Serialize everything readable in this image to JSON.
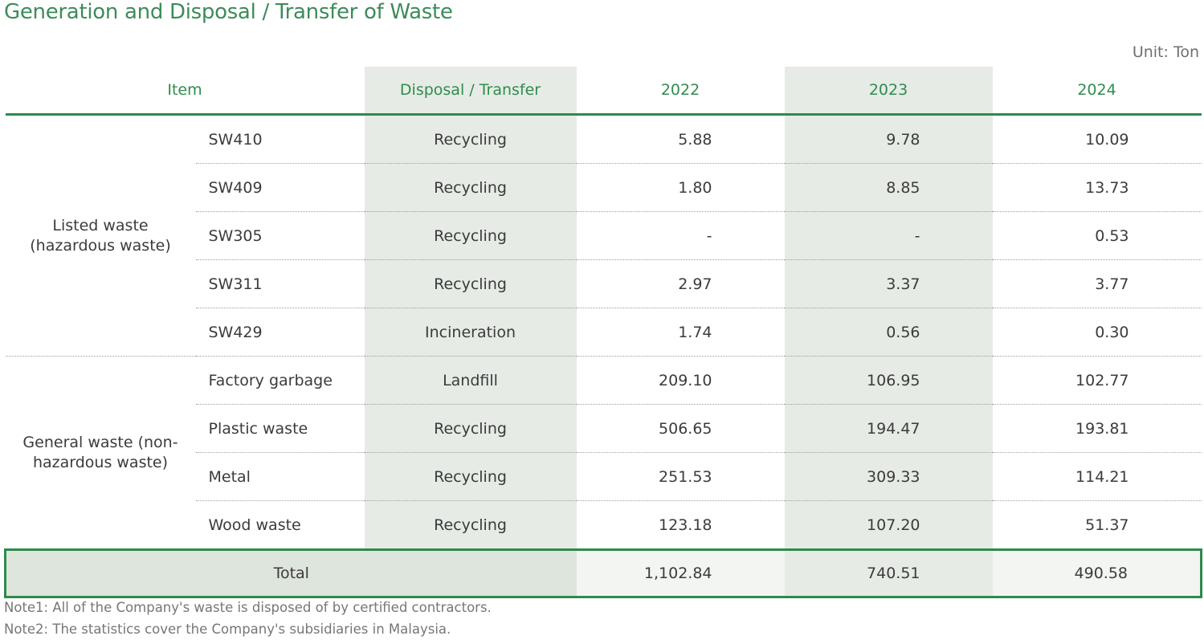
{
  "title": "Generation and Disposal / Transfer of Waste",
  "unit": "Unit: Ton",
  "headers": {
    "item": "Item",
    "disposal": "Disposal / Transfer",
    "y2022": "2022",
    "y2023": "2023",
    "y2024": "2024"
  },
  "groups": [
    {
      "name": "Listed waste (hazardous waste)",
      "rows": [
        {
          "item": "SW410",
          "disposal": "Recycling",
          "y2022": "5.88",
          "y2023": "9.78",
          "y2024": "10.09"
        },
        {
          "item": "SW409",
          "disposal": "Recycling",
          "y2022": "1.80",
          "y2023": "8.85",
          "y2024": "13.73"
        },
        {
          "item": "SW305",
          "disposal": "Recycling",
          "y2022": "-",
          "y2023": "-",
          "y2024": "0.53"
        },
        {
          "item": "SW311",
          "disposal": "Recycling",
          "y2022": "2.97",
          "y2023": "3.37",
          "y2024": "3.77"
        },
        {
          "item": "SW429",
          "disposal": "Incineration",
          "y2022": "1.74",
          "y2023": "0.56",
          "y2024": "0.30"
        }
      ]
    },
    {
      "name": "General waste (non-hazardous waste)",
      "rows": [
        {
          "item": "Factory garbage",
          "disposal": "Landfill",
          "y2022": "209.10",
          "y2023": "106.95",
          "y2024": "102.77"
        },
        {
          "item": "Plastic waste",
          "disposal": "Recycling",
          "y2022": "506.65",
          "y2023": "194.47",
          "y2024": "193.81"
        },
        {
          "item": "Metal",
          "disposal": "Recycling",
          "y2022": "251.53",
          "y2023": "309.33",
          "y2024": "114.21"
        },
        {
          "item": "Wood waste",
          "disposal": "Recycling",
          "y2022": "123.18",
          "y2023": "107.20",
          "y2024": "51.37"
        }
      ]
    }
  ],
  "total": {
    "label": "Total",
    "y2022": "1,102.84",
    "y2023": "740.51",
    "y2024": "490.58"
  },
  "notes": [
    "Note1: All of the Company's waste is disposed of by certified contractors.",
    "Note2: The statistics cover the Company's subsidiaries in Malaysia."
  ],
  "colors": {
    "accent": "#2e8a4c",
    "shade": "#e6ebe5"
  }
}
